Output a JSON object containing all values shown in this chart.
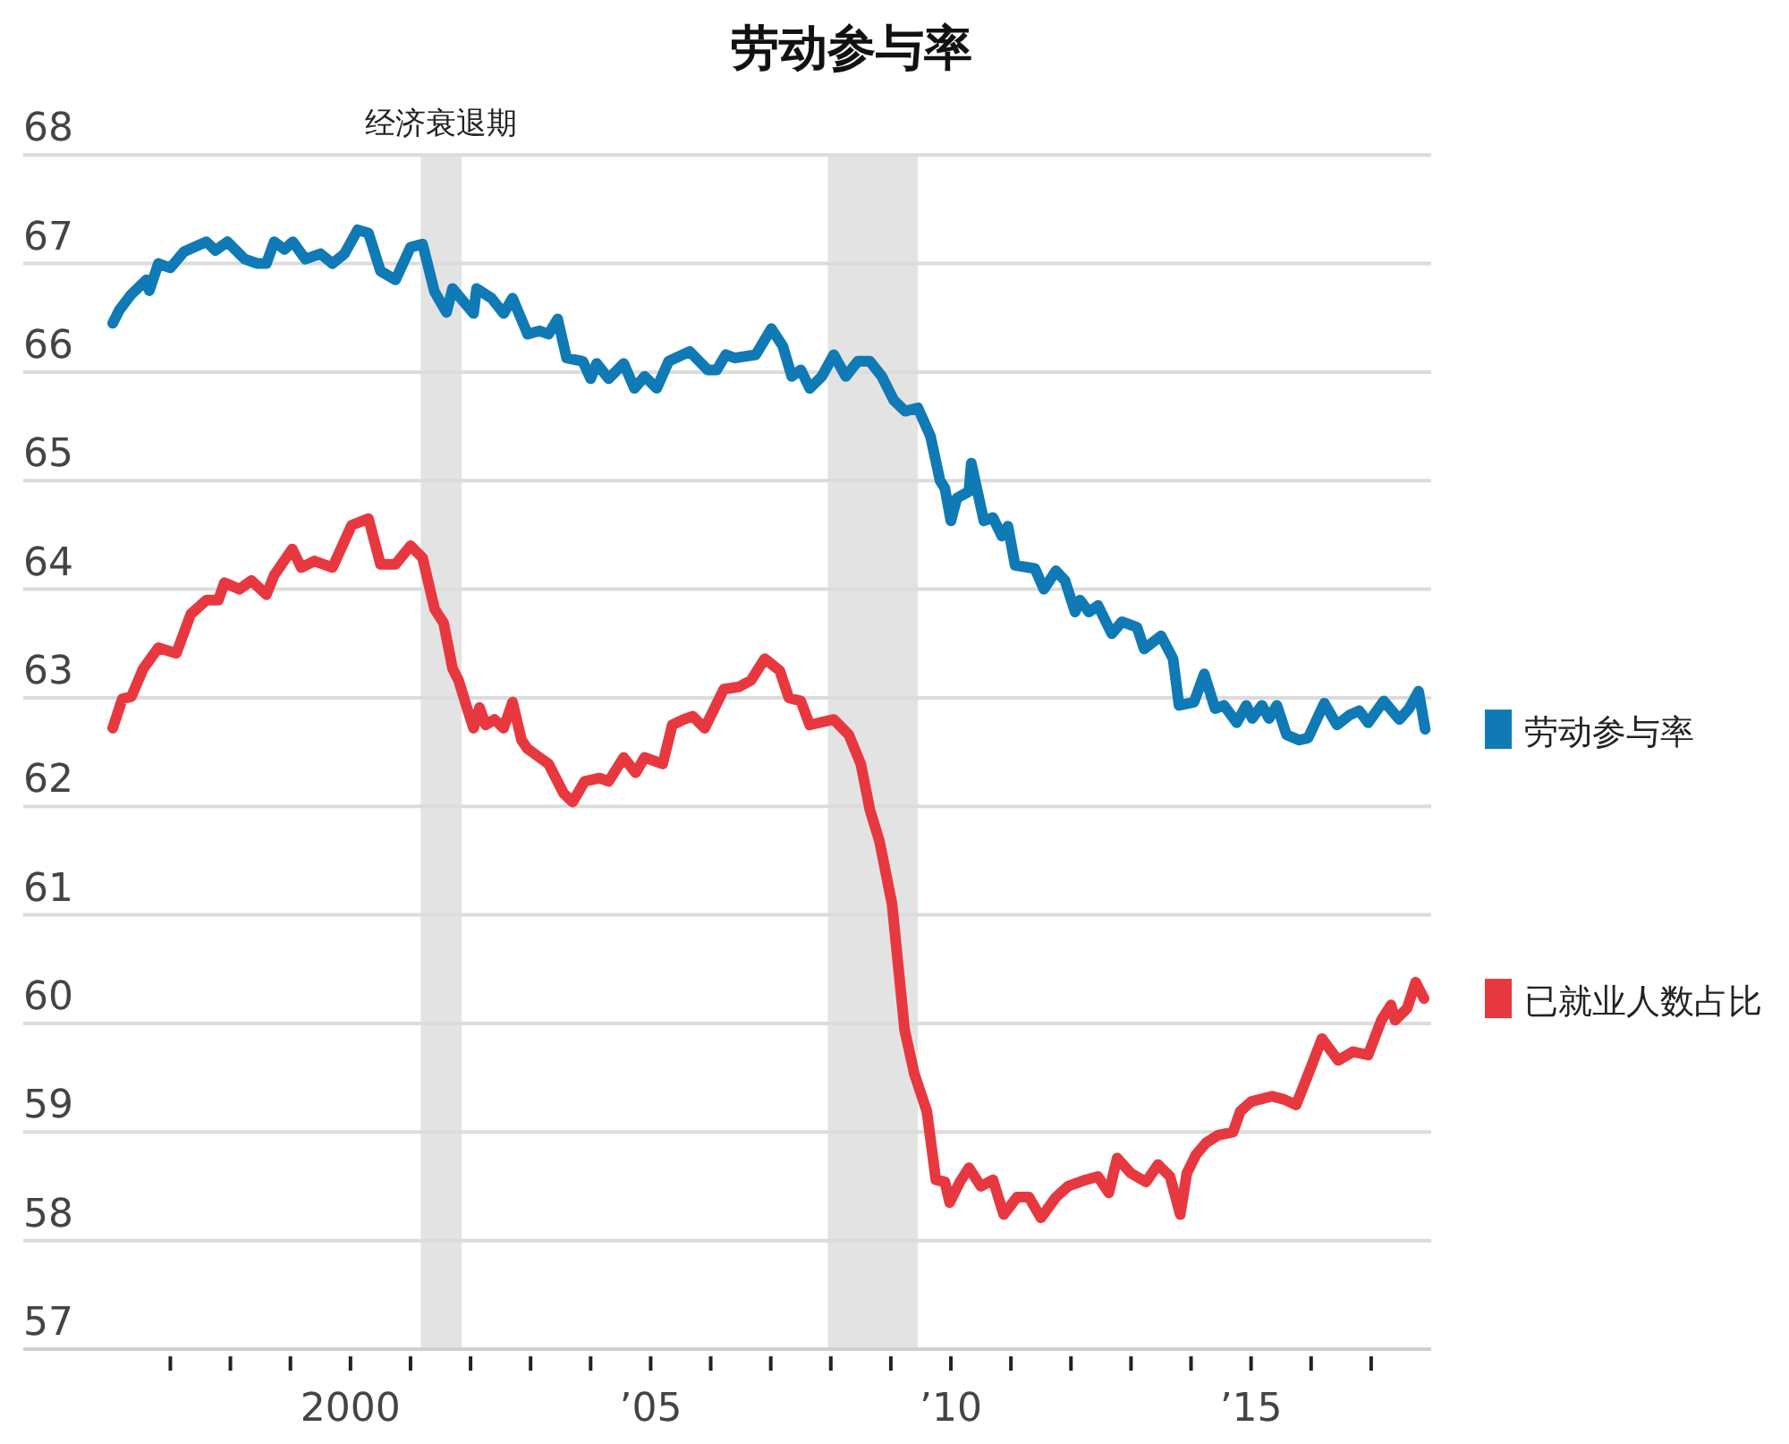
{
  "chart_data": {
    "type": "line",
    "title": "劳动参与率",
    "series": [
      {
        "name": "劳动参与率",
        "color": "#0f7ab5",
        "x": [
          1996.04,
          1996.15,
          1996.34,
          1996.6,
          1996.65,
          1996.8,
          1997.0,
          1997.23,
          1997.6,
          1997.75,
          1997.95,
          1998.24,
          1998.45,
          1998.6,
          1998.73,
          1998.9,
          1999.04,
          1999.25,
          1999.5,
          1999.7,
          1999.9,
          2000.12,
          2000.3,
          2000.5,
          2000.75,
          2001.0,
          2001.2,
          2001.4,
          2001.6,
          2001.7,
          2002.05,
          2002.1,
          2002.35,
          2002.55,
          2002.7,
          2002.95,
          2003.15,
          2003.3,
          2003.45,
          2003.6,
          2003.87,
          2004.0,
          2004.1,
          2004.3,
          2004.55,
          2004.73,
          2004.9,
          2005.1,
          2005.3,
          2005.65,
          2005.95,
          2006.1,
          2006.25,
          2006.4,
          2006.75,
          2007.01,
          2007.2,
          2007.35,
          2007.5,
          2007.65,
          2007.85,
          2008.05,
          2008.25,
          2008.45,
          2008.65,
          2008.85,
          2009.05,
          2009.24,
          2009.45,
          2009.66,
          2009.82,
          2009.9,
          2010.0,
          2010.1,
          2010.3,
          2010.34,
          2010.55,
          2010.7,
          2010.85,
          2010.95,
          2011.07,
          2011.4,
          2011.55,
          2011.75,
          2011.9,
          2012.07,
          2012.15,
          2012.3,
          2012.45,
          2012.68,
          2012.85,
          2013.1,
          2013.22,
          2013.5,
          2013.7,
          2013.8,
          2014.05,
          2014.22,
          2014.4,
          2014.55,
          2014.76,
          2014.92,
          2015.02,
          2015.18,
          2015.3,
          2015.43,
          2015.59,
          2015.8,
          2015.95,
          2016.22,
          2016.43,
          2016.64,
          2016.8,
          2016.95,
          2017.21,
          2017.47,
          2017.63,
          2017.79,
          2017.9
        ],
        "values": [
          66.45,
          66.57,
          66.71,
          66.85,
          66.75,
          67.0,
          66.96,
          67.11,
          67.2,
          67.12,
          67.2,
          67.04,
          67.0,
          67.0,
          67.2,
          67.13,
          67.2,
          67.04,
          67.09,
          67.0,
          67.09,
          67.31,
          67.28,
          66.93,
          66.85,
          67.15,
          67.18,
          66.74,
          66.55,
          66.77,
          66.54,
          66.77,
          66.68,
          66.54,
          66.68,
          66.35,
          66.38,
          66.35,
          66.49,
          66.13,
          66.1,
          65.94,
          66.08,
          65.94,
          66.08,
          65.85,
          65.96,
          65.85,
          66.1,
          66.19,
          66.02,
          66.02,
          66.16,
          66.13,
          66.16,
          66.4,
          66.24,
          65.96,
          66.02,
          65.85,
          65.96,
          66.16,
          65.96,
          66.1,
          66.1,
          65.96,
          65.74,
          65.64,
          65.67,
          65.41,
          65.0,
          64.93,
          64.63,
          64.84,
          64.9,
          65.16,
          64.63,
          64.66,
          64.49,
          64.58,
          64.22,
          64.19,
          64.0,
          64.17,
          64.08,
          63.79,
          63.9,
          63.79,
          63.85,
          63.59,
          63.7,
          63.65,
          63.45,
          63.57,
          63.36,
          62.93,
          62.96,
          63.22,
          62.9,
          62.93,
          62.77,
          62.93,
          62.81,
          62.93,
          62.81,
          62.93,
          62.66,
          62.61,
          62.63,
          62.95,
          62.75,
          62.84,
          62.88,
          62.77,
          62.97,
          62.8,
          62.9,
          63.06,
          62.71
        ]
      },
      {
        "name": "已就业人数占比",
        "color": "#e8383f",
        "x": [
          1996.04,
          1996.2,
          1996.35,
          1996.55,
          1996.8,
          1997.1,
          1997.34,
          1997.6,
          1997.8,
          1997.9,
          1998.15,
          1998.35,
          1998.6,
          1998.73,
          1999.03,
          1999.18,
          1999.4,
          1999.7,
          2000.02,
          2000.3,
          2000.5,
          2000.75,
          2001.0,
          2001.2,
          2001.4,
          2001.55,
          2001.7,
          2001.8,
          2001.95,
          2002.05,
          2002.15,
          2002.25,
          2002.4,
          2002.55,
          2002.7,
          2002.85,
          2002.95,
          2003.1,
          2003.3,
          2003.55,
          2003.7,
          2003.9,
          2004.15,
          2004.3,
          2004.55,
          2004.75,
          2004.9,
          2005.2,
          2005.36,
          2005.55,
          2005.7,
          2005.9,
          2006.22,
          2006.47,
          2006.67,
          2006.9,
          2007.15,
          2007.3,
          2007.5,
          2007.65,
          2008.05,
          2008.3,
          2008.5,
          2008.65,
          2008.81,
          2009.02,
          2009.23,
          2009.39,
          2009.6,
          2009.75,
          2009.9,
          2009.98,
          2010.15,
          2010.3,
          2010.5,
          2010.7,
          2010.88,
          2011.1,
          2011.3,
          2011.5,
          2011.75,
          2011.95,
          2012.25,
          2012.45,
          2012.63,
          2012.77,
          2013.0,
          2013.25,
          2013.45,
          2013.65,
          2013.82,
          2013.93,
          2014.08,
          2014.25,
          2014.45,
          2014.7,
          2014.82,
          2015.0,
          2015.35,
          2015.55,
          2015.75,
          2016.0,
          2016.18,
          2016.45,
          2016.7,
          2016.95,
          2017.17,
          2017.33,
          2017.4,
          2017.6,
          2017.74,
          2017.88
        ],
        "values": [
          62.72,
          62.99,
          63.01,
          63.27,
          63.46,
          63.41,
          63.77,
          63.9,
          63.9,
          64.06,
          64.0,
          64.08,
          63.95,
          64.13,
          64.37,
          64.2,
          64.26,
          64.2,
          64.59,
          64.65,
          64.23,
          64.23,
          64.4,
          64.29,
          63.82,
          63.69,
          63.27,
          63.16,
          62.89,
          62.72,
          62.91,
          62.75,
          62.8,
          62.72,
          62.96,
          62.61,
          62.53,
          62.47,
          62.39,
          62.12,
          62.04,
          62.23,
          62.26,
          62.23,
          62.45,
          62.31,
          62.45,
          62.39,
          62.75,
          62.8,
          62.83,
          62.72,
          63.08,
          63.1,
          63.16,
          63.36,
          63.25,
          63.0,
          62.97,
          62.75,
          62.8,
          62.66,
          62.39,
          61.97,
          61.68,
          61.1,
          59.94,
          59.54,
          59.19,
          58.56,
          58.54,
          58.35,
          58.54,
          58.67,
          58.5,
          58.56,
          58.24,
          58.4,
          58.4,
          58.21,
          58.4,
          58.5,
          58.56,
          58.59,
          58.44,
          58.76,
          58.62,
          58.54,
          58.7,
          58.59,
          58.24,
          58.62,
          58.79,
          58.9,
          58.97,
          59.0,
          59.19,
          59.28,
          59.33,
          59.3,
          59.25,
          59.6,
          59.86,
          59.66,
          59.74,
          59.71,
          60.03,
          60.17,
          60.03,
          60.14,
          60.38,
          60.23
        ]
      }
    ],
    "xlim": [
      1994.55,
      2018.0
    ],
    "xticks": [
      {
        "value": 1997,
        "label": null
      },
      {
        "value": 1998,
        "label": null
      },
      {
        "value": 1999,
        "label": null
      },
      2000,
      {
        "value": 2001,
        "label": null
      },
      {
        "value": 2002,
        "label": null
      },
      {
        "value": 2003,
        "label": null
      },
      {
        "value": 2004,
        "label": null
      },
      {
        "value": 2005,
        "label": "’05"
      },
      {
        "value": 2006,
        "label": null
      },
      {
        "value": 2007,
        "label": null
      },
      {
        "value": 2008,
        "label": null
      },
      {
        "value": 2009,
        "label": null
      },
      {
        "value": 2010,
        "label": "’10"
      },
      {
        "value": 2011,
        "label": null
      },
      {
        "value": 2012,
        "label": null
      },
      {
        "value": 2013,
        "label": null
      },
      {
        "value": 2014,
        "label": null
      },
      {
        "value": 2015,
        "label": "’15"
      },
      {
        "value": 2016,
        "label": null
      },
      {
        "value": 2017,
        "label": null
      }
    ],
    "ylim": [
      57,
      68
    ],
    "yticks": [
      57,
      58,
      59,
      60,
      61,
      62,
      63,
      64,
      65,
      66,
      67,
      68
    ],
    "grid": "y",
    "legend": "right",
    "bands": [
      {
        "axis": "x",
        "from": 2001.17,
        "to": 2001.85,
        "label": "经济衰退期",
        "color": "#e3e3e3"
      },
      {
        "axis": "x",
        "from": 2007.95,
        "to": 2009.45,
        "label": null,
        "color": "#e3e3e3"
      }
    ]
  }
}
